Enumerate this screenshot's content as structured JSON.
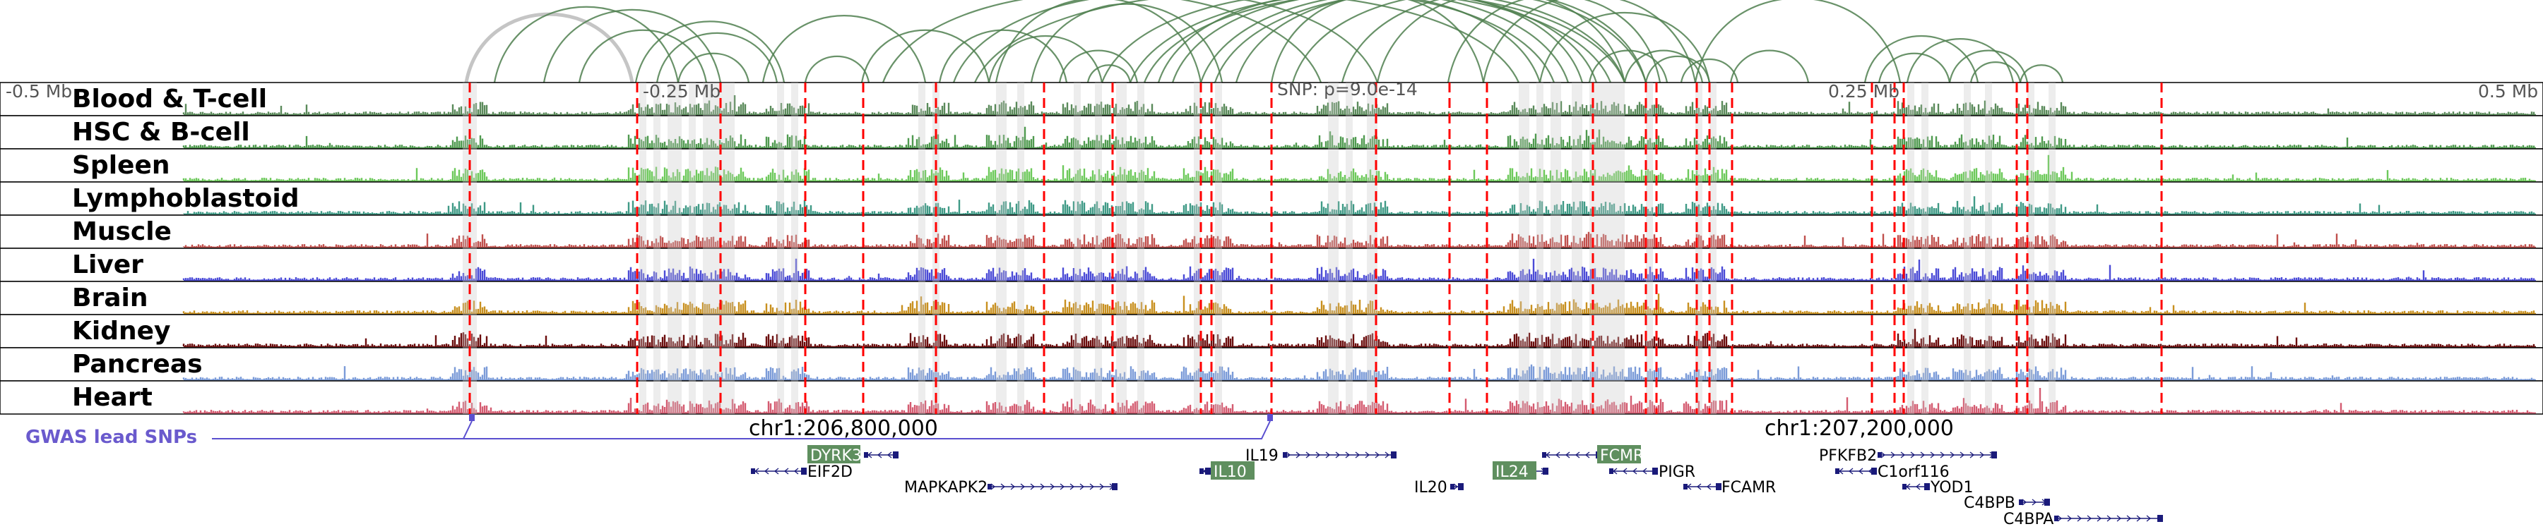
{
  "axis": {
    "ticks": [
      "-0.5 Mb",
      "-0.25 Mb",
      "0.25 Mb",
      "0.5 Mb"
    ],
    "snp_label": "SNP: p=9.0e-14"
  },
  "tracks": [
    {
      "label": "Blood & T-cell",
      "color": "#5a8a5a"
    },
    {
      "label": "HSC & B-cell",
      "color": "#4f9a4f"
    },
    {
      "label": "Spleen",
      "color": "#6dc95b"
    },
    {
      "label": "Lymphoblastoid",
      "color": "#3f9a86"
    },
    {
      "label": "Muscle",
      "color": "#c0504d"
    },
    {
      "label": "Liver",
      "color": "#4a4ad6"
    },
    {
      "label": "Brain",
      "color": "#c8901f"
    },
    {
      "label": "Kidney",
      "color": "#6b0d0d"
    },
    {
      "label": "Pancreas",
      "color": "#7b9bd8"
    },
    {
      "label": "Heart",
      "color": "#d45b70"
    }
  ],
  "colors": {
    "loop": "#4f7f4f",
    "loop_faded": "#bbbbbb",
    "marker": "#ff0000",
    "highlight_band": "#cccccc",
    "gwas": "#5a4fcf",
    "gene": "#1a1a7a",
    "gene_highlight": "#5f8f5f"
  },
  "coordinates": [
    "chr1:206,800,000",
    "chr1:207,200,000"
  ],
  "gwas": {
    "label": "GWAS lead SNPs"
  },
  "genes": [
    {
      "name": "DYRK3",
      "highlight": true
    },
    {
      "name": "EIF2D",
      "highlight": false
    },
    {
      "name": "MAPKAPK2",
      "highlight": false
    },
    {
      "name": "IL19",
      "highlight": false
    },
    {
      "name": "IL10",
      "highlight": true
    },
    {
      "name": "IL20",
      "highlight": false
    },
    {
      "name": "IL24",
      "highlight": true
    },
    {
      "name": "FCMR",
      "highlight": true
    },
    {
      "name": "PIGR",
      "highlight": false
    },
    {
      "name": "FCAMR",
      "highlight": false
    },
    {
      "name": "PFKFB2",
      "highlight": false
    },
    {
      "name": "C1orf116",
      "highlight": false
    },
    {
      "name": "YOD1",
      "highlight": false
    },
    {
      "name": "C4BPB",
      "highlight": false
    },
    {
      "name": "C4BPA",
      "highlight": false
    }
  ]
}
